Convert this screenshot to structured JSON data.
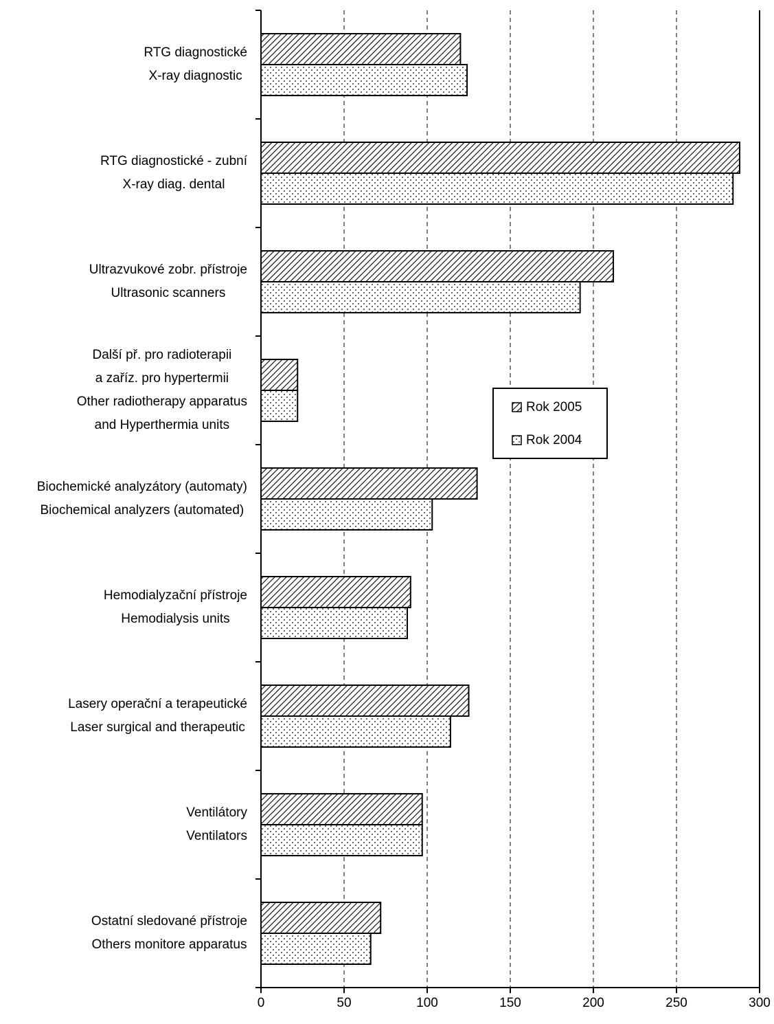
{
  "chart_data": {
    "type": "barh",
    "categories": [
      [
        "RTG diagnostické",
        "X-ray diagnostic"
      ],
      [
        "RTG diagnostické - zubní",
        "X-ray diag. dental"
      ],
      [
        "Ultrazvukové zobr. přístroje",
        "Ultrasonic scanners"
      ],
      [
        "Další př. pro radioterapii",
        "a zaříz. pro hypertermii",
        "Other radiotherapy apparatus",
        "and Hyperthermia units"
      ],
      [
        "Biochemické analyzátory (automaty)",
        "Biochemical analyzers (automated)"
      ],
      [
        "Hemodialyzační přístroje",
        "Hemodialysis units"
      ],
      [
        "Lasery operační a terapeutické",
        "Laser surgical and therapeutic"
      ],
      [
        "Ventilátory",
        "Ventilators"
      ],
      [
        "Ostatní sledované přístroje",
        "Others monitore apparatus"
      ]
    ],
    "series": [
      {
        "name": "Rok 2005",
        "color": "#000000",
        "pattern": "hatch",
        "values": [
          120,
          288,
          212,
          22,
          130,
          90,
          125,
          97,
          72
        ]
      },
      {
        "name": "Rok 2004",
        "color": "#000000",
        "pattern": "dots",
        "values": [
          124,
          284,
          192,
          22,
          103,
          88,
          114,
          97,
          66
        ]
      }
    ],
    "xlim": [
      0,
      300
    ],
    "xticks": [
      0,
      50,
      100,
      150,
      200,
      250,
      300
    ],
    "grid": true,
    "legend": "center"
  }
}
